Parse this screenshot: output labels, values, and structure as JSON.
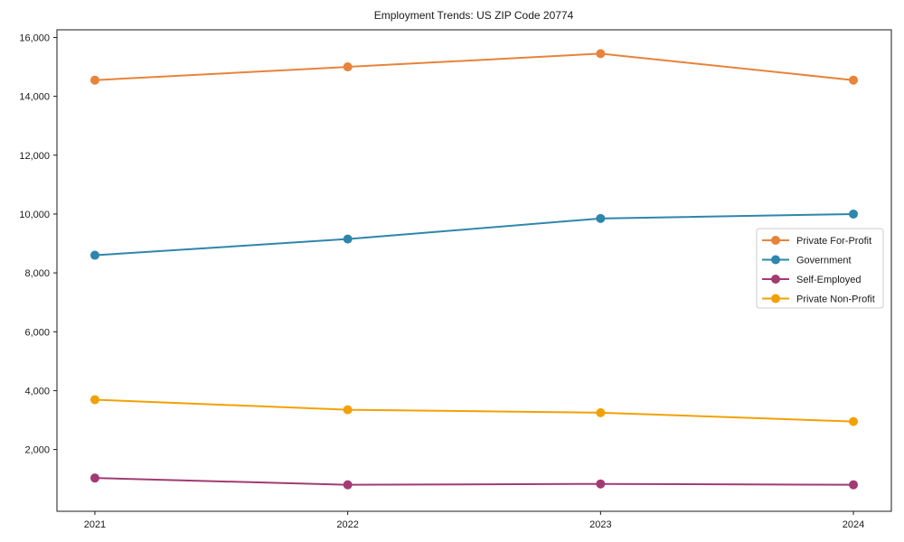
{
  "chart_data": {
    "type": "line",
    "title": "Employment Trends: US ZIP Code 20774",
    "x": [
      "2021",
      "2022",
      "2023",
      "2024"
    ],
    "series": [
      {
        "name": "Private For-Profit",
        "color": "#E8833A",
        "values": [
          14550,
          15000,
          15450,
          14550
        ]
      },
      {
        "name": "Government",
        "color": "#2E86AB",
        "values": [
          8600,
          9150,
          9850,
          10000
        ]
      },
      {
        "name": "Self-Employed",
        "color": "#A23B72",
        "values": [
          1030,
          800,
          830,
          800
        ]
      },
      {
        "name": "Private Non-Profit",
        "color": "#F2A104",
        "values": [
          3690,
          3350,
          3250,
          2950
        ]
      }
    ],
    "yticks": [
      2000,
      4000,
      6000,
      8000,
      10000,
      12000,
      14000,
      16000
    ],
    "ylim": [
      -100,
      16260
    ],
    "xlim_index": [
      -0.15,
      3.15
    ],
    "grid": false,
    "marker": "o",
    "line_width": 2,
    "marker_radius": 5,
    "legend_position": "center right",
    "axis_color": "#1a1a1a",
    "legend_border_color": "#cccccc",
    "background_color": "#ffffff"
  }
}
